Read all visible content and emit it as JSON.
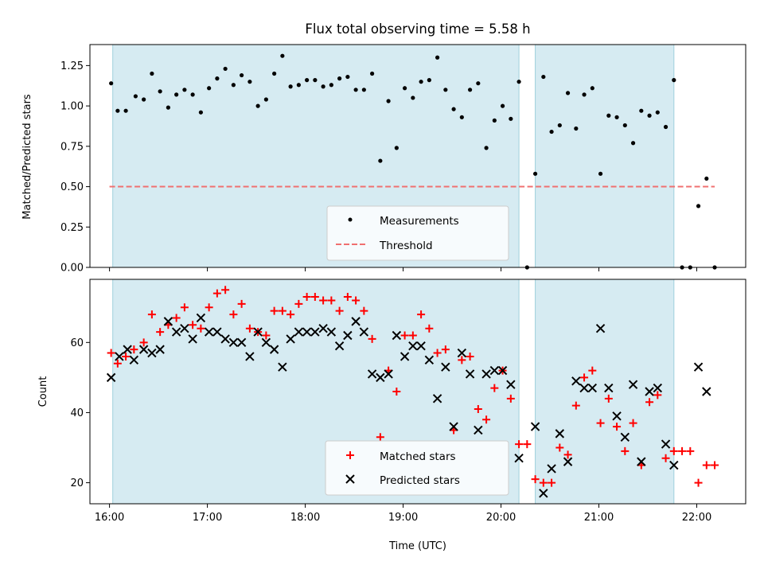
{
  "chart_data": [
    {
      "type": "scatter",
      "title": "Flux total observing time = 5.58 h",
      "xlabel": "",
      "ylabel": "Matched/Predicted stars",
      "xlim": [
        "15:48",
        "22:30"
      ],
      "ylim": [
        0,
        1.38
      ],
      "yticks": [
        0.0,
        0.25,
        0.5,
        0.75,
        1.0,
        1.25
      ],
      "ytick_labels": [
        "0.00",
        "0.25",
        "0.50",
        "0.75",
        "1.00",
        "1.25"
      ],
      "shaded_intervals": [
        [
          "16:02",
          "20:11"
        ],
        [
          "20:21",
          "21:46"
        ]
      ],
      "legend_position": "lower-center",
      "series": [
        {
          "name": "Measurements",
          "marker": "dot",
          "color": "#000000",
          "points": [
            [
              "16:01",
              1.14
            ],
            [
              "16:05",
              0.97
            ],
            [
              "16:10",
              0.97
            ],
            [
              "16:16",
              1.06
            ],
            [
              "16:21",
              1.04
            ],
            [
              "16:26",
              1.2
            ],
            [
              "16:31",
              1.09
            ],
            [
              "16:36",
              0.99
            ],
            [
              "16:41",
              1.07
            ],
            [
              "16:46",
              1.1
            ],
            [
              "16:51",
              1.07
            ],
            [
              "16:56",
              0.96
            ],
            [
              "17:01",
              1.11
            ],
            [
              "17:06",
              1.17
            ],
            [
              "17:11",
              1.23
            ],
            [
              "17:16",
              1.13
            ],
            [
              "17:21",
              1.19
            ],
            [
              "17:26",
              1.15
            ],
            [
              "17:31",
              1.0
            ],
            [
              "17:36",
              1.04
            ],
            [
              "17:41",
              1.2
            ],
            [
              "17:46",
              1.31
            ],
            [
              "17:51",
              1.12
            ],
            [
              "17:56",
              1.13
            ],
            [
              "18:01",
              1.16
            ],
            [
              "18:06",
              1.16
            ],
            [
              "18:11",
              1.12
            ],
            [
              "18:16",
              1.13
            ],
            [
              "18:21",
              1.17
            ],
            [
              "18:26",
              1.18
            ],
            [
              "18:31",
              1.1
            ],
            [
              "18:36",
              1.1
            ],
            [
              "18:41",
              1.2
            ],
            [
              "18:46",
              0.66
            ],
            [
              "18:51",
              1.03
            ],
            [
              "18:56",
              0.74
            ],
            [
              "19:01",
              1.11
            ],
            [
              "19:06",
              1.05
            ],
            [
              "19:11",
              1.15
            ],
            [
              "19:16",
              1.16
            ],
            [
              "19:21",
              1.3
            ],
            [
              "19:26",
              1.1
            ],
            [
              "19:31",
              0.98
            ],
            [
              "19:36",
              0.93
            ],
            [
              "19:41",
              1.1
            ],
            [
              "19:46",
              1.14
            ],
            [
              "19:51",
              0.74
            ],
            [
              "19:56",
              0.91
            ],
            [
              "20:01",
              1.0
            ],
            [
              "20:06",
              0.92
            ],
            [
              "20:11",
              1.15
            ],
            [
              "20:16",
              0.0
            ],
            [
              "20:21",
              0.58
            ],
            [
              "20:26",
              1.18
            ],
            [
              "20:31",
              0.84
            ],
            [
              "20:36",
              0.88
            ],
            [
              "20:41",
              1.08
            ],
            [
              "20:46",
              0.86
            ],
            [
              "20:51",
              1.07
            ],
            [
              "20:56",
              1.11
            ],
            [
              "21:01",
              0.58
            ],
            [
              "21:06",
              0.94
            ],
            [
              "21:11",
              0.93
            ],
            [
              "21:16",
              0.88
            ],
            [
              "21:21",
              0.77
            ],
            [
              "21:26",
              0.97
            ],
            [
              "21:31",
              0.94
            ],
            [
              "21:36",
              0.96
            ],
            [
              "21:41",
              0.87
            ],
            [
              "21:46",
              1.16
            ],
            [
              "21:51",
              0.0
            ],
            [
              "21:56",
              0.0
            ],
            [
              "22:01",
              0.38
            ],
            [
              "22:06",
              0.55
            ],
            [
              "22:11",
              0.0
            ]
          ]
        },
        {
          "name": "Threshold",
          "type": "line",
          "style": "dashed",
          "color": "#f07070",
          "points": [
            [
              "16:00",
              0.5
            ],
            [
              "22:11",
              0.5
            ]
          ]
        }
      ]
    },
    {
      "type": "scatter",
      "title": "",
      "xlabel": "Time (UTC)",
      "ylabel": "Count",
      "xlim": [
        "15:48",
        "22:30"
      ],
      "ylim": [
        14,
        78
      ],
      "yticks": [
        20,
        40,
        60
      ],
      "ytick_labels": [
        "20",
        "40",
        "60"
      ],
      "xticks": [
        "16:00",
        "17:00",
        "18:00",
        "19:00",
        "20:00",
        "21:00",
        "22:00"
      ],
      "shaded_intervals": [
        [
          "16:02",
          "20:11"
        ],
        [
          "20:21",
          "21:46"
        ]
      ],
      "legend_position": "lower-center",
      "series": [
        {
          "name": "Matched stars",
          "marker": "plus",
          "color": "#ff0000",
          "points": [
            [
              "16:01",
              57
            ],
            [
              "16:05",
              54
            ],
            [
              "16:10",
              56
            ],
            [
              "16:15",
              58
            ],
            [
              "16:21",
              60
            ],
            [
              "16:26",
              68
            ],
            [
              "16:31",
              63
            ],
            [
              "16:36",
              65
            ],
            [
              "16:41",
              67
            ],
            [
              "16:46",
              70
            ],
            [
              "16:51",
              65
            ],
            [
              "16:56",
              64
            ],
            [
              "17:01",
              70
            ],
            [
              "17:06",
              74
            ],
            [
              "17:11",
              75
            ],
            [
              "17:16",
              68
            ],
            [
              "17:21",
              71
            ],
            [
              "17:26",
              64
            ],
            [
              "17:31",
              63
            ],
            [
              "17:36",
              62
            ],
            [
              "17:41",
              69
            ],
            [
              "17:46",
              69
            ],
            [
              "17:51",
              68
            ],
            [
              "17:56",
              71
            ],
            [
              "18:01",
              73
            ],
            [
              "18:06",
              73
            ],
            [
              "18:11",
              72
            ],
            [
              "18:16",
              72
            ],
            [
              "18:21",
              69
            ],
            [
              "18:26",
              73
            ],
            [
              "18:31",
              72
            ],
            [
              "18:36",
              69
            ],
            [
              "18:41",
              61
            ],
            [
              "18:46",
              33
            ],
            [
              "18:51",
              52
            ],
            [
              "18:56",
              46
            ],
            [
              "19:01",
              62
            ],
            [
              "19:06",
              62
            ],
            [
              "19:11",
              68
            ],
            [
              "19:16",
              64
            ],
            [
              "19:21",
              57
            ],
            [
              "19:26",
              58
            ],
            [
              "19:31",
              35
            ],
            [
              "19:36",
              55
            ],
            [
              "19:41",
              56
            ],
            [
              "19:46",
              41
            ],
            [
              "19:51",
              38
            ],
            [
              "19:56",
              47
            ],
            [
              "20:01",
              52
            ],
            [
              "20:06",
              44
            ],
            [
              "20:11",
              31
            ],
            [
              "20:16",
              31
            ],
            [
              "20:21",
              21
            ],
            [
              "20:26",
              20
            ],
            [
              "20:31",
              20
            ],
            [
              "20:36",
              30
            ],
            [
              "20:41",
              28
            ],
            [
              "20:46",
              42
            ],
            [
              "20:51",
              50
            ],
            [
              "20:56",
              52
            ],
            [
              "21:01",
              37
            ],
            [
              "21:06",
              44
            ],
            [
              "21:11",
              36
            ],
            [
              "21:16",
              29
            ],
            [
              "21:21",
              37
            ],
            [
              "21:26",
              25
            ],
            [
              "21:31",
              43
            ],
            [
              "21:36",
              45
            ],
            [
              "21:41",
              27
            ],
            [
              "21:46",
              29
            ],
            [
              "21:51",
              29
            ],
            [
              "21:56",
              29
            ],
            [
              "22:01",
              20
            ],
            [
              "22:06",
              25
            ],
            [
              "22:11",
              25
            ]
          ]
        },
        {
          "name": "Predicted stars",
          "marker": "x",
          "color": "#000000",
          "points": [
            [
              "16:01",
              50
            ],
            [
              "16:06",
              56
            ],
            [
              "16:11",
              58
            ],
            [
              "16:15",
              55
            ],
            [
              "16:21",
              58
            ],
            [
              "16:26",
              57
            ],
            [
              "16:31",
              58
            ],
            [
              "16:36",
              66
            ],
            [
              "16:41",
              63
            ],
            [
              "16:46",
              64
            ],
            [
              "16:51",
              61
            ],
            [
              "16:56",
              67
            ],
            [
              "17:01",
              63
            ],
            [
              "17:06",
              63
            ],
            [
              "17:11",
              61
            ],
            [
              "17:16",
              60
            ],
            [
              "17:21",
              60
            ],
            [
              "17:26",
              56
            ],
            [
              "17:31",
              63
            ],
            [
              "17:36",
              60
            ],
            [
              "17:41",
              58
            ],
            [
              "17:46",
              53
            ],
            [
              "17:51",
              61
            ],
            [
              "17:56",
              63
            ],
            [
              "18:01",
              63
            ],
            [
              "18:06",
              63
            ],
            [
              "18:11",
              64
            ],
            [
              "18:16",
              63
            ],
            [
              "18:21",
              59
            ],
            [
              "18:26",
              62
            ],
            [
              "18:31",
              66
            ],
            [
              "18:36",
              63
            ],
            [
              "18:41",
              51
            ],
            [
              "18:46",
              50
            ],
            [
              "18:51",
              51
            ],
            [
              "18:56",
              62
            ],
            [
              "19:01",
              56
            ],
            [
              "19:06",
              59
            ],
            [
              "19:11",
              59
            ],
            [
              "19:16",
              55
            ],
            [
              "19:21",
              44
            ],
            [
              "19:26",
              53
            ],
            [
              "19:31",
              36
            ],
            [
              "19:36",
              57
            ],
            [
              "19:41",
              51
            ],
            [
              "19:46",
              35
            ],
            [
              "19:51",
              51
            ],
            [
              "19:56",
              52
            ],
            [
              "20:01",
              52
            ],
            [
              "20:06",
              48
            ],
            [
              "20:11",
              27
            ],
            [
              "20:21",
              36
            ],
            [
              "20:26",
              17
            ],
            [
              "20:31",
              24
            ],
            [
              "20:36",
              34
            ],
            [
              "20:41",
              26
            ],
            [
              "20:46",
              49
            ],
            [
              "20:51",
              47
            ],
            [
              "20:56",
              47
            ],
            [
              "21:01",
              64
            ],
            [
              "21:06",
              47
            ],
            [
              "21:11",
              39
            ],
            [
              "21:16",
              33
            ],
            [
              "21:21",
              48
            ],
            [
              "21:26",
              26
            ],
            [
              "21:31",
              46
            ],
            [
              "21:36",
              47
            ],
            [
              "21:41",
              31
            ],
            [
              "21:46",
              25
            ],
            [
              "22:01",
              53
            ],
            [
              "22:06",
              46
            ]
          ]
        }
      ]
    }
  ]
}
